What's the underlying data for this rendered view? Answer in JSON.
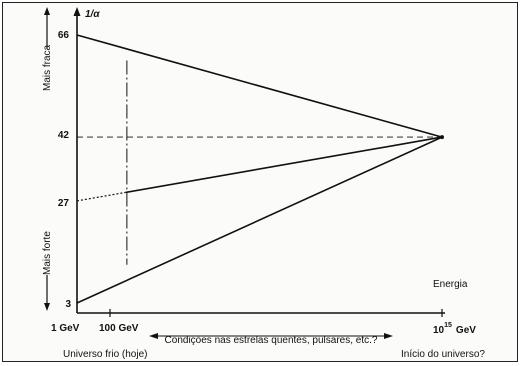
{
  "chart_data": {
    "type": "line",
    "ylabel": "1/α",
    "y_ticks": [
      "66",
      "42",
      "27",
      "3"
    ],
    "x_ticks": [
      {
        "label": "1 GeV"
      },
      {
        "label": "100 GeV"
      },
      {
        "label_base": "10",
        "label_exp": "15",
        "label_unit": "GeV"
      }
    ],
    "x_axis_name": "Energia",
    "upper_side_label": "Mais fraca",
    "lower_side_label": "Mais forte",
    "range_arrow_label": "Condições nas estrelas quentes, pulsares, etc.?",
    "left_caption": "Universo frio (hoje)",
    "right_caption": "Início do universo?",
    "x_scale": "log10(E/GeV)",
    "xlim": [
      0,
      15.5
    ],
    "ylim": [
      0,
      72
    ],
    "series": [
      {
        "x": [
          0,
          15
        ],
        "values": [
          66,
          42
        ],
        "style": "solid"
      },
      {
        "x": [
          2,
          15
        ],
        "values": [
          29,
          42
        ],
        "style": "solid"
      },
      {
        "x": [
          0,
          2
        ],
        "values": [
          27,
          29
        ],
        "style": "dotted"
      },
      {
        "x": [
          0,
          15
        ],
        "values": [
          3,
          42
        ],
        "style": "solid"
      }
    ],
    "reference_lines": [
      {
        "type": "horizontal",
        "y": 42,
        "x_range": [
          0,
          15
        ],
        "style": "dashed"
      },
      {
        "type": "vertical",
        "x": 2.05,
        "y_range": [
          12,
          60
        ],
        "style": "dash-dot"
      }
    ],
    "grid": false
  }
}
